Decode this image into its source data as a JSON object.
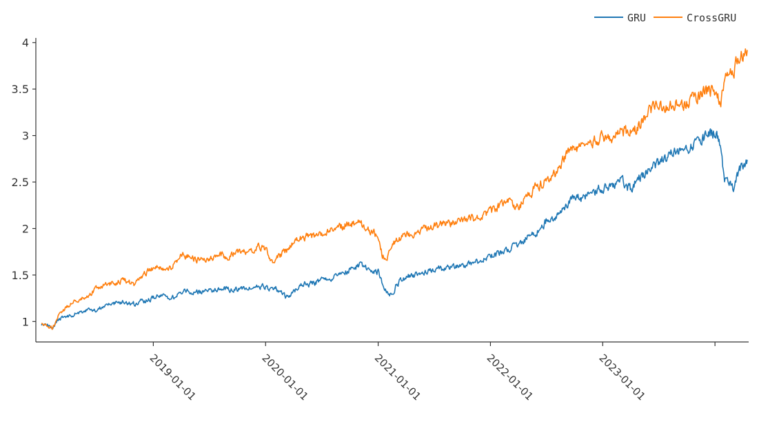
{
  "chart_data": {
    "type": "line",
    "title": "",
    "xlabel": "",
    "ylabel": "",
    "x_axis": {
      "type": "date",
      "range": [
        "2018-01-02",
        "2024-04-15"
      ],
      "ticks": [
        "2019-01-01",
        "2020-01-01",
        "2021-01-01",
        "2022-01-01",
        "2023-01-01",
        "2024-01-01"
      ],
      "tick_labels": [
        "2019-01-01",
        "2020-01-01",
        "2021-01-01",
        "2022-01-01",
        "2023-01-01",
        ""
      ]
    },
    "y_axis": {
      "range": [
        0.78,
        4.05
      ],
      "ticks": [
        1,
        1.5,
        2,
        2.5,
        3,
        3.5,
        4
      ],
      "tick_labels": [
        "1",
        "1.5",
        "2",
        "2.5",
        "3",
        "3.5",
        "4"
      ]
    },
    "grid": false,
    "legend": {
      "position": "top-right",
      "orientation": "horizontal"
    },
    "series": [
      {
        "name": "GRU",
        "color": "#1f77b4",
        "x": [
          "2018-01-02",
          "2018-01-20",
          "2018-02-08",
          "2018-03-01",
          "2018-04-01",
          "2018-05-01",
          "2018-06-01",
          "2018-07-01",
          "2018-08-01",
          "2018-09-01",
          "2018-10-01",
          "2018-11-01",
          "2018-12-01",
          "2019-01-01",
          "2019-02-01",
          "2019-03-01",
          "2019-04-01",
          "2019-05-01",
          "2019-06-01",
          "2019-07-01",
          "2019-08-01",
          "2019-09-01",
          "2019-10-01",
          "2019-11-01",
          "2019-12-01",
          "2020-01-01",
          "2020-01-20",
          "2020-02-05",
          "2020-02-25",
          "2020-03-15",
          "2020-04-01",
          "2020-05-01",
          "2020-06-01",
          "2020-07-01",
          "2020-08-01",
          "2020-09-01",
          "2020-10-01",
          "2020-11-01",
          "2020-12-01",
          "2020-12-20",
          "2021-01-01",
          "2021-01-15",
          "2021-02-01",
          "2021-02-15",
          "2021-03-01",
          "2021-04-01",
          "2021-05-01",
          "2021-06-01",
          "2021-07-01",
          "2021-08-01",
          "2021-09-01",
          "2021-10-01",
          "2021-11-01",
          "2021-12-01",
          "2022-01-01",
          "2022-02-01",
          "2022-03-01",
          "2022-04-01",
          "2022-05-01",
          "2022-06-01",
          "2022-07-01",
          "2022-08-01",
          "2022-09-01",
          "2022-10-01",
          "2022-11-01",
          "2022-12-01",
          "2023-01-01",
          "2023-02-01",
          "2023-03-01",
          "2023-04-01",
          "2023-05-01",
          "2023-06-01",
          "2023-07-01",
          "2023-08-01",
          "2023-09-01",
          "2023-10-01",
          "2023-11-01",
          "2023-12-01",
          "2023-12-25",
          "2024-01-05",
          "2024-01-18",
          "2024-02-01",
          "2024-02-10",
          "2024-02-20",
          "2024-03-01",
          "2024-03-15",
          "2024-04-01",
          "2024-04-15"
        ],
        "y": [
          0.97,
          0.96,
          0.94,
          1.03,
          1.06,
          1.09,
          1.12,
          1.13,
          1.19,
          1.2,
          1.22,
          1.19,
          1.22,
          1.26,
          1.27,
          1.24,
          1.31,
          1.33,
          1.32,
          1.33,
          1.35,
          1.34,
          1.35,
          1.36,
          1.37,
          1.37,
          1.33,
          1.35,
          1.3,
          1.25,
          1.32,
          1.4,
          1.41,
          1.45,
          1.46,
          1.52,
          1.56,
          1.61,
          1.56,
          1.54,
          1.54,
          1.4,
          1.3,
          1.29,
          1.4,
          1.48,
          1.5,
          1.52,
          1.55,
          1.57,
          1.58,
          1.61,
          1.62,
          1.66,
          1.7,
          1.74,
          1.77,
          1.82,
          1.9,
          1.97,
          2.08,
          2.13,
          2.23,
          2.32,
          2.33,
          2.37,
          2.44,
          2.48,
          2.51,
          2.42,
          2.56,
          2.62,
          2.7,
          2.8,
          2.84,
          2.85,
          2.91,
          2.99,
          3.02,
          3.04,
          2.88,
          2.5,
          2.48,
          2.52,
          2.4,
          2.58,
          2.68,
          2.74
        ]
      },
      {
        "name": "CrossGRU",
        "color": "#ff7f0e",
        "x": [
          "2018-01-02",
          "2018-01-20",
          "2018-02-08",
          "2018-03-01",
          "2018-04-01",
          "2018-05-01",
          "2018-06-01",
          "2018-07-01",
          "2018-08-01",
          "2018-09-01",
          "2018-10-01",
          "2018-11-01",
          "2018-12-01",
          "2019-01-01",
          "2019-02-01",
          "2019-03-01",
          "2019-04-01",
          "2019-05-01",
          "2019-06-01",
          "2019-07-01",
          "2019-08-01",
          "2019-09-01",
          "2019-10-01",
          "2019-11-01",
          "2019-12-01",
          "2020-01-01",
          "2020-01-20",
          "2020-02-05",
          "2020-02-25",
          "2020-03-15",
          "2020-04-01",
          "2020-05-01",
          "2020-06-01",
          "2020-07-01",
          "2020-08-01",
          "2020-09-01",
          "2020-10-01",
          "2020-11-01",
          "2020-12-01",
          "2020-12-20",
          "2021-01-01",
          "2021-01-15",
          "2021-02-01",
          "2021-02-15",
          "2021-03-01",
          "2021-04-01",
          "2021-05-01",
          "2021-06-01",
          "2021-07-01",
          "2021-08-01",
          "2021-09-01",
          "2021-10-01",
          "2021-11-01",
          "2021-12-01",
          "2022-01-01",
          "2022-02-01",
          "2022-03-01",
          "2022-04-01",
          "2022-05-01",
          "2022-06-01",
          "2022-07-01",
          "2022-08-01",
          "2022-09-01",
          "2022-10-01",
          "2022-11-01",
          "2022-12-01",
          "2023-01-01",
          "2023-02-01",
          "2023-03-01",
          "2023-04-01",
          "2023-05-01",
          "2023-06-01",
          "2023-07-01",
          "2023-08-01",
          "2023-09-01",
          "2023-10-01",
          "2023-11-01",
          "2023-12-01",
          "2023-12-25",
          "2024-01-05",
          "2024-01-18",
          "2024-02-01",
          "2024-02-10",
          "2024-02-20",
          "2024-03-01",
          "2024-03-15",
          "2024-04-01",
          "2024-04-15"
        ],
        "y": [
          0.98,
          0.96,
          0.93,
          1.08,
          1.17,
          1.23,
          1.27,
          1.37,
          1.4,
          1.42,
          1.45,
          1.38,
          1.52,
          1.58,
          1.57,
          1.57,
          1.72,
          1.69,
          1.66,
          1.68,
          1.71,
          1.7,
          1.75,
          1.76,
          1.8,
          1.78,
          1.63,
          1.68,
          1.73,
          1.78,
          1.85,
          1.91,
          1.92,
          1.93,
          1.97,
          2.02,
          2.06,
          2.06,
          1.98,
          1.95,
          1.9,
          1.7,
          1.71,
          1.8,
          1.87,
          1.94,
          1.95,
          1.98,
          2.02,
          2.05,
          2.06,
          2.07,
          2.1,
          2.13,
          2.18,
          2.25,
          2.28,
          2.22,
          2.35,
          2.45,
          2.52,
          2.6,
          2.75,
          2.88,
          2.86,
          2.92,
          3.0,
          2.95,
          3.04,
          3.03,
          3.12,
          3.25,
          3.35,
          3.33,
          3.32,
          3.34,
          3.4,
          3.46,
          3.48,
          3.5,
          3.3,
          3.55,
          3.75,
          3.7,
          3.65,
          3.82,
          3.88,
          3.92
        ]
      }
    ]
  }
}
